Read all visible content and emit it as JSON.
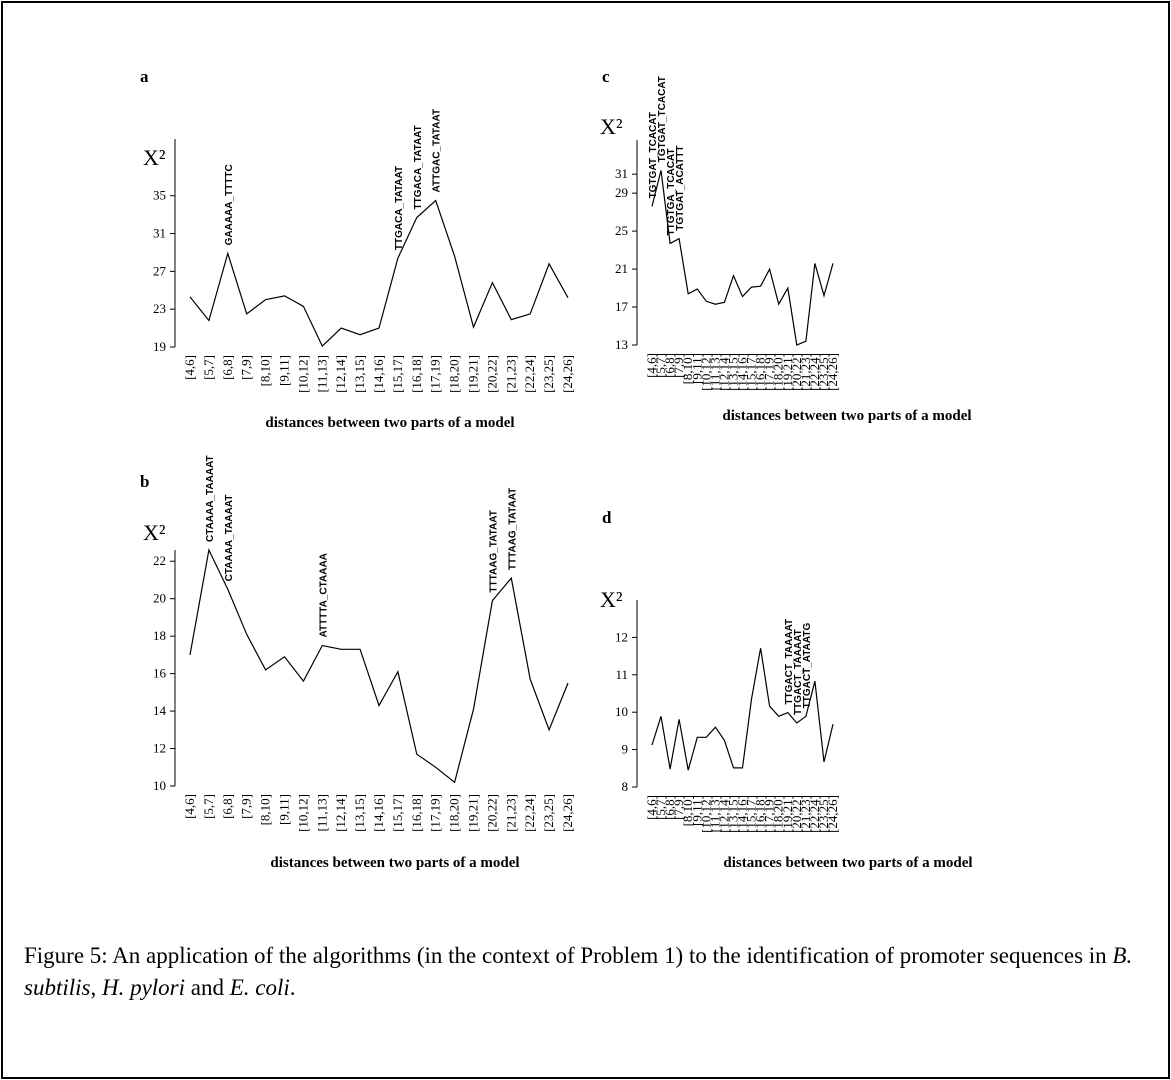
{
  "chart_data": [
    {
      "type": "line",
      "label": "a",
      "ylabel": "X²",
      "xlabel": "distances between two parts of a model",
      "categories": [
        "[4,6]",
        "[5,7]",
        "[6,8]",
        "[7,9]",
        "[8,10]",
        "[9,11]",
        "[10,12]",
        "[11,13]",
        "[12,14]",
        "[13,15]",
        "[14,16]",
        "[15,17]",
        "[16,18]",
        "[17,19]",
        "[18,20]",
        "[19,21]",
        "[20,22]",
        "[21,23]",
        "[22,24]",
        "[23,25]",
        "[24,26]"
      ],
      "values": [
        24.3,
        21.8,
        28.9,
        22.5,
        24.0,
        24.4,
        23.3,
        19.1,
        21.0,
        20.3,
        21.0,
        28.4,
        32.7,
        34.5,
        28.6,
        21.1,
        25.8,
        21.9,
        22.5,
        27.8,
        24.2
      ],
      "color": "#000000",
      "ylim": [
        19,
        41
      ],
      "yticks": [
        19,
        23,
        27,
        31,
        35
      ],
      "annotations": [
        "GAAAAA_TTTTC",
        "TTGACA_TATAAT",
        "TTGACA_TATAAT",
        "ATTGAC_TATAAT"
      ]
    },
    {
      "type": "line",
      "label": "b",
      "ylabel": "X²",
      "xlabel": "distances between two parts of a model",
      "categories": [
        "[4,6]",
        "[5,7]",
        "[6,8]",
        "[7,9]",
        "[8,10]",
        "[9,11]",
        "[10,12]",
        "[11,13]",
        "[12,14]",
        "[13,15]",
        "[14,16]",
        "[15,17]",
        "[16,18]",
        "[17,19]",
        "[18,20]",
        "[19,21]",
        "[20,22]",
        "[21,23]",
        "[22,24]",
        "[23,25]",
        "[24,26]"
      ],
      "values": [
        17.0,
        22.6,
        20.5,
        18.1,
        16.2,
        16.9,
        15.6,
        17.5,
        17.3,
        17.3,
        14.3,
        16.1,
        11.7,
        11.0,
        10.2,
        14.1,
        19.9,
        21.1,
        15.7,
        13.0,
        15.5
      ],
      "color": "#000000",
      "ylim": [
        10,
        22.6
      ],
      "yticks": [
        10,
        12,
        14,
        16,
        18,
        20,
        22
      ],
      "annotations": [
        "CTAAAA_TAAAAT",
        "CTAAAA_TAAAAT",
        "ATTTTA_CTAAAA",
        "TTTAAG_TATAAT",
        "TTTAAG_TATAAT"
      ]
    },
    {
      "type": "line",
      "label": "c",
      "ylabel": "X²",
      "xlabel": "distances between two parts of a model",
      "categories": [
        "[4,6]",
        "[5,7]",
        "[6,8]",
        "[7,9]",
        "[8,10]",
        "[9,11]",
        "[10,12]",
        "[11,13]",
        "[12,14]",
        "[13,15]",
        "[14,16]",
        "[15,17]",
        "[16,18]",
        "[17,19]",
        "[18,20]",
        "[19,21]",
        "[20,22]",
        "[21,23]",
        "[22,24]",
        "[23,25]",
        "[24,26]"
      ],
      "values": [
        27.6,
        31.4,
        23.7,
        24.2,
        18.4,
        18.9,
        17.6,
        17.3,
        17.5,
        20.3,
        18.1,
        19.1,
        19.2,
        21.0,
        17.3,
        19.0,
        13.0,
        13.4,
        21.6,
        18.2,
        21.6
      ],
      "color": "#000000",
      "ylim": [
        13,
        34.6
      ],
      "yticks": [
        13,
        17,
        21,
        25,
        29,
        31
      ],
      "annotations": [
        "TGTGAT_TCACAT",
        "TGTGAT_TCACAT",
        "TTGTGA_TCACAT",
        "TGTGAT_ACATTT"
      ]
    },
    {
      "type": "line",
      "label": "d",
      "ylabel": "X²",
      "xlabel": "distances between two parts of a model",
      "categories": [
        "[4,6]",
        "[5,7]",
        "[6,8]",
        "[7,9]",
        "[8,10]",
        "[9,11]",
        "[10,12]",
        "[11,13]",
        "[12,14]",
        "[13,15]",
        "[14,16]",
        "[15,17]",
        "[16,18]",
        "[17,19]",
        "[18,20]",
        "[19,21]",
        "[20,22]",
        "[21,23]",
        "[22,24]",
        "[23,25]",
        "[24,26]"
      ],
      "values": [
        9.12,
        9.89,
        8.48,
        9.81,
        8.45,
        9.33,
        9.33,
        9.6,
        9.25,
        8.51,
        8.51,
        10.35,
        11.71,
        10.16,
        9.89,
        9.99,
        9.71,
        9.89,
        10.83,
        8.67,
        9.68
      ],
      "color": "#000000",
      "ylim": [
        8,
        13
      ],
      "yticks": [
        8,
        9,
        10,
        11,
        12
      ],
      "annotations": [
        "TTGACT_TAAAAT",
        "TTGACT_TAAAAT",
        "TTGACT_ATAATG",
        "TTATTC_TATAAT"
      ]
    }
  ],
  "caption": [
    "Figure 5: An application of the algorithms (in the context of Problem 1) to the identification of promoter sequences in ",
    "B. subtilis",
    ", ",
    "H. pylori",
    " and ",
    "E. coli",
    "."
  ]
}
